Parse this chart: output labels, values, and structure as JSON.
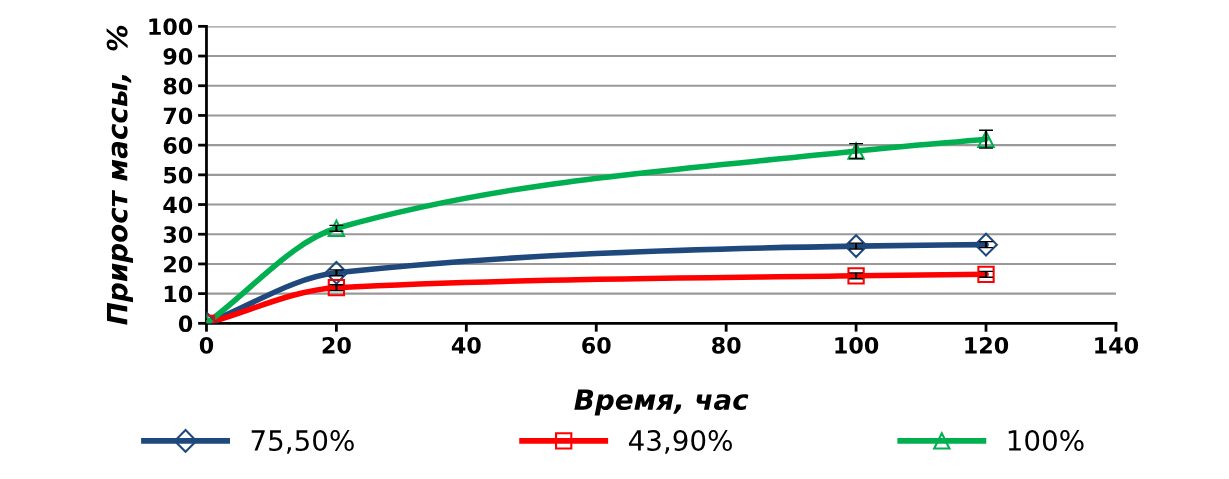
{
  "chart_data": {
    "type": "line",
    "xlabel": "Время, час",
    "ylabel": "Прирост массы,  %",
    "x": [
      0,
      20,
      100,
      120
    ],
    "xlim": [
      0,
      140
    ],
    "xticks": [
      0,
      20,
      40,
      60,
      80,
      100,
      120,
      140
    ],
    "ylim": [
      0,
      100
    ],
    "yticks": [
      0,
      10,
      20,
      30,
      40,
      50,
      60,
      70,
      80,
      90,
      100
    ],
    "grid": "y",
    "legend": "bottom",
    "line_style": "solid",
    "series": [
      {
        "name": "75,50%",
        "color": "#1f497d",
        "marker": "diamond",
        "values": [
          0,
          17,
          26,
          26.5
        ],
        "errors": [
          null,
          1,
          1,
          1
        ]
      },
      {
        "name": "43,90%",
        "color": "#ff0000",
        "marker": "square",
        "values": [
          0,
          12,
          16,
          16.5
        ],
        "errors": [
          null,
          1,
          1,
          1
        ]
      },
      {
        "name": "100%",
        "color": "#00b050",
        "marker": "triangle",
        "values": [
          0,
          32,
          58,
          62
        ],
        "errors": [
          null,
          1,
          2.5,
          3
        ]
      }
    ]
  }
}
